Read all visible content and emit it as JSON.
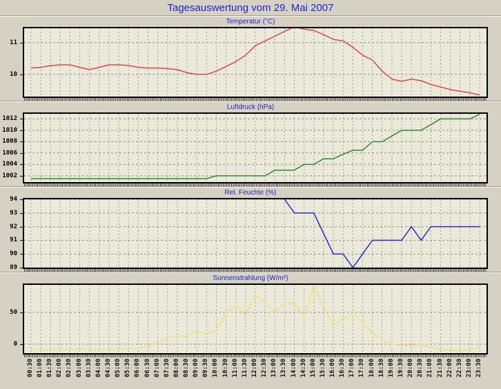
{
  "page": {
    "title": "Tagesauswertung vom 29. Mai 2007"
  },
  "colors": {
    "page_background": "#d5d1c3",
    "plot_background": "#ebe9da",
    "grid": "#9c9c94",
    "grid_horizontal": "#8f8f87",
    "axis_border": "#000000",
    "heading_text": "#2424cb",
    "temperature_line": "#e04540",
    "pressure_line": "#2e8b2e",
    "humidity_line": "#2a2ac8",
    "radiation_line": "#e6e678"
  },
  "chart_data": {
    "type": "line",
    "layout": "4 stacked time-series panels sharing one x-axis, gridlines dashed, x ticks every 30 min",
    "categories": [
      "00:30",
      "01:00",
      "01:30",
      "02:00",
      "02:30",
      "03:00",
      "03:30",
      "04:00",
      "04:30",
      "05:00",
      "05:30",
      "06:00",
      "06:30",
      "07:00",
      "07:30",
      "08:00",
      "08:30",
      "09:00",
      "09:30",
      "10:00",
      "10:30",
      "11:00",
      "11:30",
      "12:00",
      "12:30",
      "13:00",
      "13:30",
      "14:00",
      "14:30",
      "15:00",
      "15:30",
      "16:00",
      "16:30",
      "17:00",
      "17:30",
      "18:00",
      "18:30",
      "19:00",
      "19:30",
      "20:00",
      "20:30",
      "21:00",
      "21:30",
      "22:00",
      "22:30",
      "23:00",
      "23:30"
    ],
    "panels": [
      {
        "name": "temperatur",
        "title": "Temperatur (°C)",
        "color": "#e04540",
        "ylim": [
          9.3,
          11.45
        ],
        "yticks": [
          10,
          11
        ],
        "ytick_labels": [
          "10",
          "11"
        ],
        "values": [
          10.2,
          10.22,
          10.27,
          10.3,
          10.3,
          10.22,
          10.15,
          10.22,
          10.3,
          10.3,
          10.28,
          10.22,
          10.2,
          10.2,
          10.18,
          10.15,
          10.05,
          10.0,
          10.0,
          10.1,
          10.25,
          10.4,
          10.6,
          10.9,
          11.05,
          11.2,
          11.35,
          11.5,
          11.42,
          11.38,
          11.25,
          11.1,
          11.05,
          10.85,
          10.6,
          10.45,
          10.1,
          9.85,
          9.78,
          9.85,
          9.8,
          9.68,
          9.6,
          9.52,
          9.47,
          9.42,
          9.35
        ]
      },
      {
        "name": "luftdruck",
        "title": "Luftdruck (hPa)",
        "color": "#2e8b2e",
        "ylim": [
          1000.9,
          1012.9
        ],
        "yticks": [
          1002,
          1004,
          1006,
          1008,
          1010,
          1012
        ],
        "ytick_labels": [
          "1002",
          "1004",
          "1006",
          "1008",
          "1010",
          "1012"
        ],
        "values": [
          1001.5,
          1001.5,
          1001.5,
          1001.5,
          1001.5,
          1001.5,
          1001.5,
          1001.5,
          1001.5,
          1001.5,
          1001.5,
          1001.5,
          1001.5,
          1001.5,
          1001.5,
          1001.5,
          1001.5,
          1001.5,
          1001.5,
          1002,
          1002,
          1002,
          1002,
          1002,
          1002,
          1003,
          1003,
          1003,
          1004,
          1004,
          1005,
          1005,
          1005.8,
          1006.5,
          1006.5,
          1008,
          1008,
          1009,
          1010,
          1010,
          1010,
          1011,
          1012,
          1012,
          1012,
          1012,
          1012.8
        ]
      },
      {
        "name": "rel-feuchte",
        "title": "Rel. Feuchte (%)",
        "color": "#2a2ac8",
        "ylim": [
          89,
          94
        ],
        "yticks": [
          89,
          90,
          91,
          92,
          93,
          94
        ],
        "ytick_labels": [
          "89",
          "90",
          "91",
          "92",
          "93",
          "94"
        ],
        "values": [
          null,
          null,
          null,
          null,
          null,
          null,
          null,
          null,
          null,
          null,
          null,
          null,
          null,
          null,
          null,
          null,
          null,
          null,
          null,
          null,
          null,
          null,
          null,
          null,
          null,
          null,
          94,
          93,
          93,
          93,
          91.5,
          90,
          90,
          89,
          90,
          91,
          91,
          91,
          91,
          92,
          91,
          92,
          92,
          92,
          92,
          92,
          92
        ]
      },
      {
        "name": "sonnenstrahlung",
        "title": "Sonnenstrahlung (W/m²)",
        "color": "#e6e678",
        "ylim": [
          -14,
          93
        ],
        "yticks": [
          0,
          50
        ],
        "ytick_labels": [
          "0",
          "50"
        ],
        "values": [
          -8,
          -8,
          -8,
          -8,
          -8,
          -8,
          -8,
          -8,
          -8,
          -8,
          -8,
          -6,
          -3,
          2,
          10,
          13,
          12,
          20,
          15,
          22,
          48,
          60,
          45,
          78,
          65,
          50,
          65,
          64,
          42,
          92,
          58,
          30,
          40,
          49,
          33,
          18,
          6,
          0,
          -2,
          -2,
          0,
          -5,
          -8,
          -8.5,
          -8.5,
          -8,
          -6
        ]
      }
    ]
  }
}
